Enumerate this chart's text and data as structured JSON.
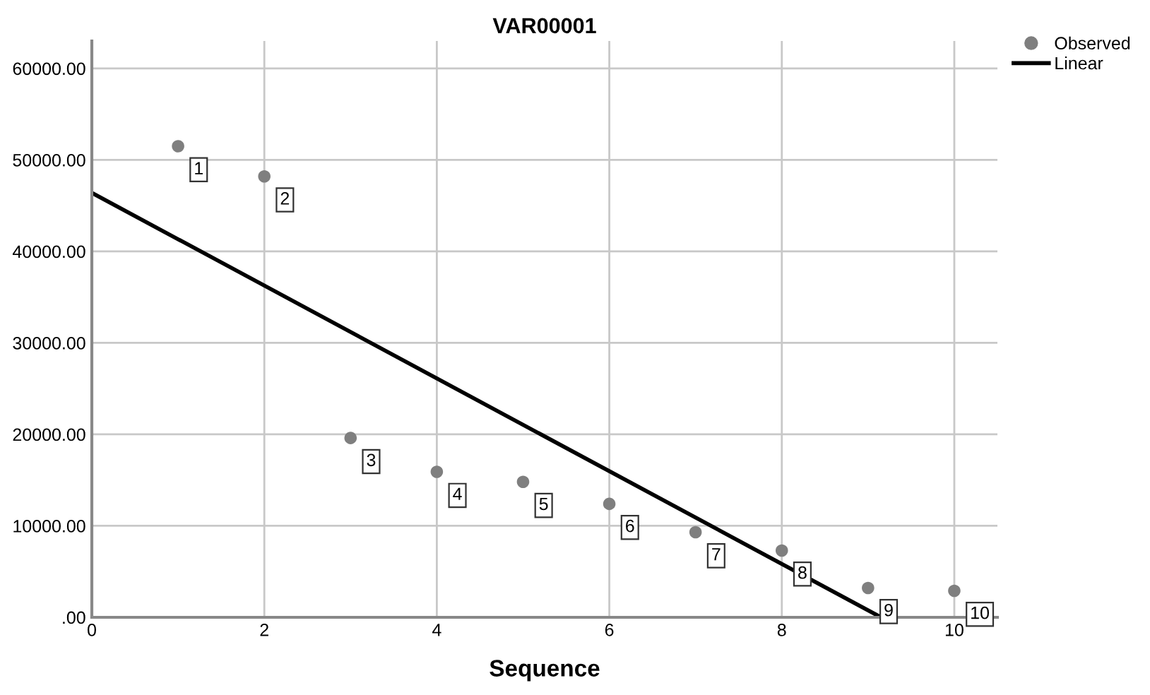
{
  "chart_data": {
    "type": "scatter",
    "title": "VAR00001",
    "xlabel": "Sequence",
    "xlim": [
      0,
      10.5
    ],
    "xticks": [
      0,
      2,
      4,
      6,
      8,
      10
    ],
    "ylim": [
      0,
      63000
    ],
    "yticks": [
      {
        "value": 0,
        "label": ".00"
      },
      {
        "value": 10000,
        "label": "10000.00"
      },
      {
        "value": 20000,
        "label": "20000.00"
      },
      {
        "value": 30000,
        "label": "30000.00"
      },
      {
        "value": 40000,
        "label": "40000.00"
      },
      {
        "value": 50000,
        "label": "50000.00"
      },
      {
        "value": 60000,
        "label": "60000.00"
      }
    ],
    "grid": true,
    "legend": "top right",
    "series": [
      {
        "name": "Observed",
        "marker": "circle",
        "color": "#7f7f7f",
        "x": [
          1,
          2,
          3,
          4,
          5,
          6,
          7,
          8,
          9,
          10
        ],
        "values": [
          51500,
          48200,
          19600,
          15900,
          14800,
          12400,
          9300,
          7300,
          3200,
          2900
        ]
      },
      {
        "name": "Linear",
        "type": "line",
        "color": "#000000",
        "line_style": "solid",
        "x": [
          0,
          9.15
        ],
        "values": [
          46400,
          0
        ]
      }
    ],
    "annotations": [
      {
        "text": "1",
        "x": 1,
        "y": 51500
      },
      {
        "text": "2",
        "x": 2,
        "y": 48200
      },
      {
        "text": "3",
        "x": 3,
        "y": 19600
      },
      {
        "text": "4",
        "x": 4,
        "y": 15900
      },
      {
        "text": "5",
        "x": 5,
        "y": 14800
      },
      {
        "text": "6",
        "x": 6,
        "y": 12400
      },
      {
        "text": "7",
        "x": 7,
        "y": 9300
      },
      {
        "text": "8",
        "x": 8,
        "y": 7300
      },
      {
        "text": "9",
        "x": 9,
        "y": 3200
      },
      {
        "text": "10",
        "x": 10,
        "y": 2900
      }
    ]
  }
}
